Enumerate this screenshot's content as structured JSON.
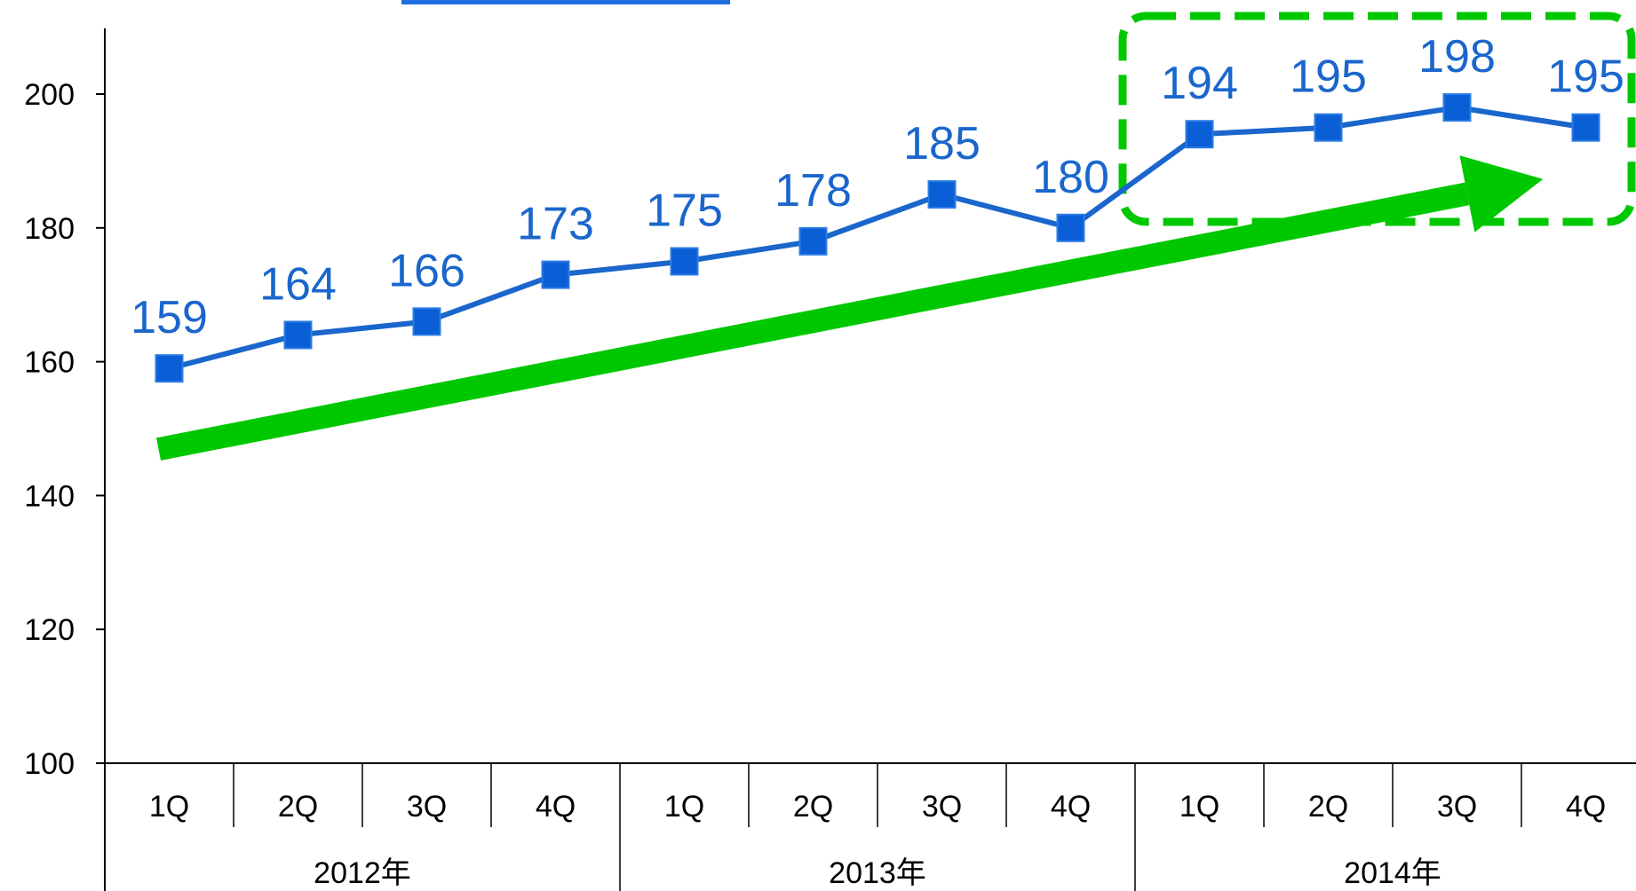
{
  "chart_data": {
    "type": "line",
    "title": "",
    "xlabel": "",
    "ylabel": "",
    "ylim": [
      100,
      210
    ],
    "yticks": [
      100,
      120,
      140,
      160,
      180,
      200
    ],
    "grid": false,
    "categories": [
      "1Q",
      "2Q",
      "3Q",
      "4Q",
      "1Q",
      "2Q",
      "3Q",
      "4Q",
      "1Q",
      "2Q",
      "3Q",
      "4Q"
    ],
    "groups": [
      {
        "label": "2012年",
        "span": 4
      },
      {
        "label": "2013年",
        "span": 4
      },
      {
        "label": "2014年",
        "span": 4
      }
    ],
    "series": [
      {
        "values": [
          159,
          164,
          166,
          173,
          175,
          178,
          185,
          180,
          194,
          195,
          198,
          195
        ]
      }
    ],
    "annotations": [
      {
        "type": "trend-arrow",
        "from_index": 0,
        "from_value": 148,
        "to_index": 11,
        "to_value": 187
      },
      {
        "type": "dashed-highlight-box",
        "from_index": 8,
        "to_index": 11
      }
    ]
  },
  "colors": {
    "series": "#1a66cc",
    "marker": "#0a5fd6",
    "label": "#1a66cc",
    "accent": "#00c800",
    "axis": "#000000",
    "partial_bar": "#1f6fe0"
  }
}
